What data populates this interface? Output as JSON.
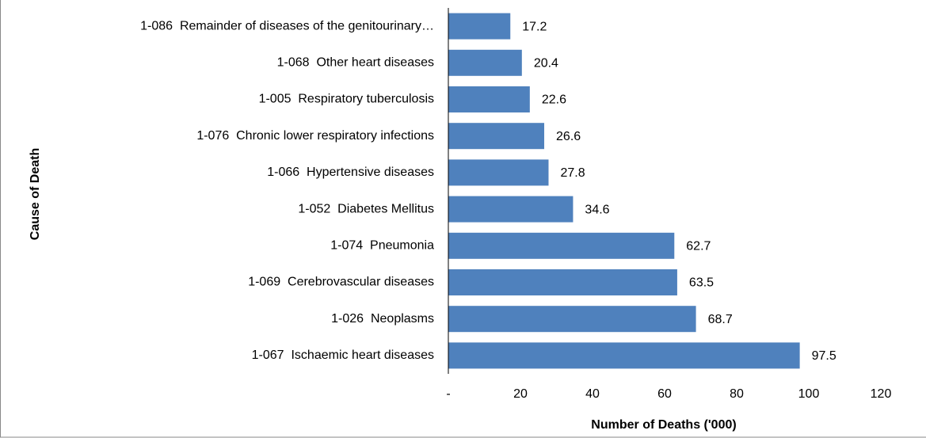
{
  "chart_data": {
    "type": "bar",
    "orientation": "horizontal",
    "x_label": "Number of Deaths ('000)",
    "y_label": "Cause of Death",
    "categories": [
      "1-086  Remainder of diseases of the genitourinary…",
      "1-068  Other heart diseases",
      "1-005  Respiratory tuberculosis",
      "1-076  Chronic lower respiratory infections",
      "1-066  Hypertensive diseases",
      "1-052  Diabetes Mellitus",
      "1-074  Pneumonia",
      "1-069  Cerebrovascular diseases",
      "1-026  Neoplasms",
      "1-067  Ischaemic heart diseases"
    ],
    "values": [
      17.2,
      20.4,
      22.6,
      26.6,
      27.8,
      34.6,
      62.7,
      63.5,
      68.7,
      97.5
    ],
    "color": "#4f81bd",
    "xlim": [
      0,
      120
    ],
    "xticks": [
      {
        "value": 0,
        "label": "-"
      },
      20,
      40,
      60,
      80,
      100,
      120
    ]
  }
}
